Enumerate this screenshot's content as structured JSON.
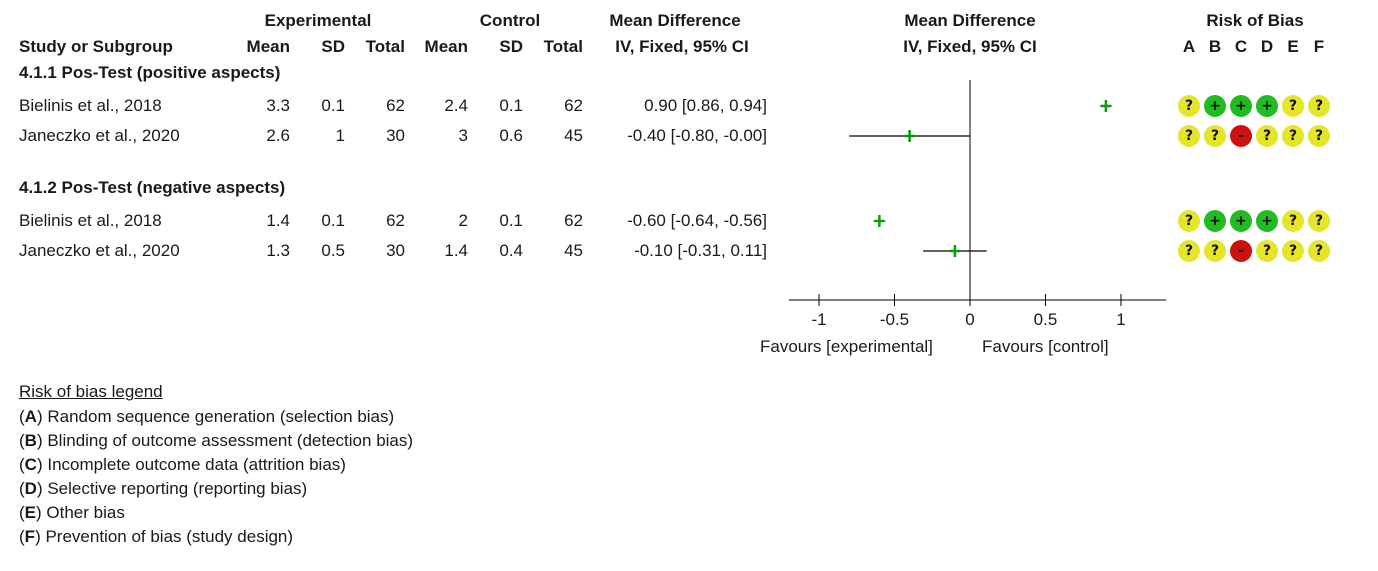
{
  "header": {
    "experimental": "Experimental",
    "control": "Control",
    "mean_difference": "Mean Difference",
    "mean_difference_plot": "Mean Difference",
    "risk_of_bias": "Risk of Bias",
    "study_or_subgroup": "Study or Subgroup",
    "exp_mean": "Mean",
    "exp_sd": "SD",
    "exp_total": "Total",
    "ctl_mean": "Mean",
    "ctl_sd": "SD",
    "ctl_total": "Total",
    "ci": "IV, Fixed, 95% CI",
    "ci_plot": "IV, Fixed, 95% CI",
    "rob_letters": [
      "A",
      "B",
      "C",
      "D",
      "E",
      "F"
    ]
  },
  "subgroups": [
    {
      "title": "4.1.1 Pos-Test (positive aspects)",
      "studies": [
        {
          "study": "Bielinis et al., 2018",
          "exp_mean": "3.3",
          "exp_sd": "0.1",
          "exp_total": "62",
          "ctl_mean": "2.4",
          "ctl_sd": "0.1",
          "ctl_total": "62",
          "ci_text": "0.90 [0.86, 0.94]",
          "md": 0.9,
          "lo": 0.86,
          "hi": 0.94,
          "rob": [
            "?",
            "+",
            "+",
            "+",
            "?",
            "?"
          ]
        },
        {
          "study": "Janeczko et al., 2020",
          "exp_mean": "2.6",
          "exp_sd": "1",
          "exp_total": "30",
          "ctl_mean": "3",
          "ctl_sd": "0.6",
          "ctl_total": "45",
          "ci_text": "-0.40 [-0.80, -0.00]",
          "md": -0.4,
          "lo": -0.8,
          "hi": -0.0,
          "rob": [
            "?",
            "?",
            "-",
            "?",
            "?",
            "?"
          ]
        }
      ]
    },
    {
      "title": "4.1.2 Pos-Test (negative aspects)",
      "studies": [
        {
          "study": "Bielinis et al., 2018",
          "exp_mean": "1.4",
          "exp_sd": "0.1",
          "exp_total": "62",
          "ctl_mean": "2",
          "ctl_sd": "0.1",
          "ctl_total": "62",
          "ci_text": "-0.60 [-0.64, -0.56]",
          "md": -0.6,
          "lo": -0.64,
          "hi": -0.56,
          "rob": [
            "?",
            "+",
            "+",
            "+",
            "?",
            "?"
          ]
        },
        {
          "study": "Janeczko et al., 2020",
          "exp_mean": "1.3",
          "exp_sd": "0.5",
          "exp_total": "30",
          "ctl_mean": "1.4",
          "ctl_sd": "0.4",
          "ctl_total": "45",
          "ci_text": "-0.10 [-0.31, 0.11]",
          "md": -0.1,
          "lo": -0.31,
          "hi": 0.11,
          "rob": [
            "?",
            "?",
            "-",
            "?",
            "?",
            "?"
          ]
        }
      ]
    }
  ],
  "axis": {
    "favours_left": "Favours [experimental]",
    "favours_right": "Favours [control]"
  },
  "legend": {
    "title": "Risk of bias legend",
    "items": [
      {
        "letter": "(A)",
        "text": " Random sequence generation (selection bias)"
      },
      {
        "letter": "(B)",
        "text": " Blinding of outcome assessment (detection bias)"
      },
      {
        "letter": "(C)",
        "text": " Incomplete outcome data (attrition bias)"
      },
      {
        "letter": "(D)",
        "text": " Selective reporting (reporting bias)"
      },
      {
        "letter": "(E)",
        "text": " Other bias"
      },
      {
        "letter": "(F)",
        "text": " Prevention of bias (study design)"
      }
    ]
  },
  "colors": {
    "marker": "#0a9a0a",
    "axis": "#000000",
    "rob_low": "#22bb22",
    "rob_unclear": "#e5e52a",
    "rob_high": "#cc1111"
  },
  "chart_data": {
    "type": "forest",
    "xlim": [
      -1.2,
      1.3
    ],
    "xticks": [
      "-1",
      "-0.5",
      "0",
      "0.5",
      "1"
    ],
    "xtick_values": [
      -1,
      -0.5,
      0,
      0.5,
      1
    ],
    "reference_line": 0,
    "points": [
      {
        "label": "Bielinis et al., 2018",
        "subgroup": "4.1.1",
        "md": 0.9,
        "lo": 0.86,
        "hi": 0.94
      },
      {
        "label": "Janeczko et al., 2020",
        "subgroup": "4.1.1",
        "md": -0.4,
        "lo": -0.8,
        "hi": -0.0
      },
      {
        "label": "Bielinis et al., 2018",
        "subgroup": "4.1.2",
        "md": -0.6,
        "lo": -0.64,
        "hi": -0.56
      },
      {
        "label": "Janeczko et al., 2020",
        "subgroup": "4.1.2",
        "md": -0.1,
        "lo": -0.31,
        "hi": 0.11
      }
    ]
  }
}
